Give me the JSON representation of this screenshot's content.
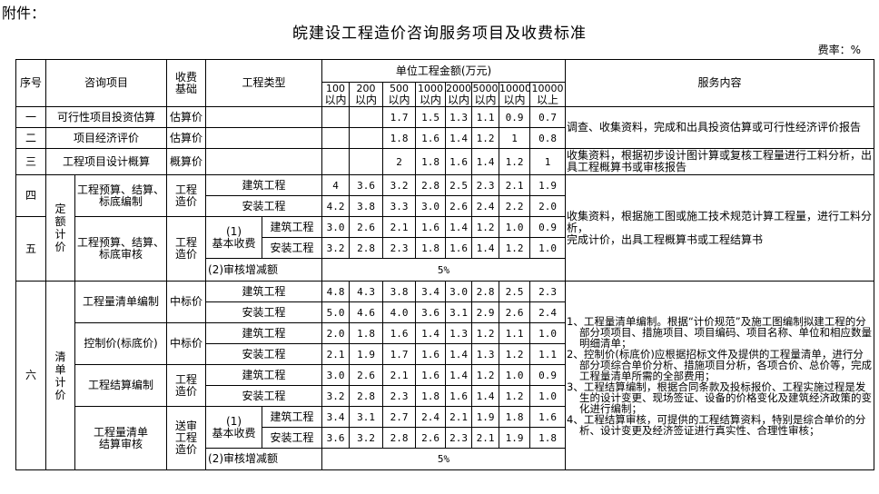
{
  "attachment_label": "附件：",
  "title": "皖建设工程造价咨询服务项目及收费标准",
  "rate_unit": "费率：%",
  "header": {
    "seq": "序号",
    "item": "咨询项目",
    "basis": "收费基础",
    "type": "工程类型",
    "amount": "单位工程金额(万元)",
    "ranges": [
      {
        "top": "100",
        "bottom": "以内"
      },
      {
        "top": "200",
        "bottom": "以内"
      },
      {
        "top": "500",
        "bottom": "以内"
      },
      {
        "top": "1000",
        "bottom": "以内"
      },
      {
        "top": "2000",
        "bottom": "以内"
      },
      {
        "top": "5000",
        "bottom": "以内"
      },
      {
        "top": "10000",
        "bottom": "以内"
      },
      {
        "top": "10000",
        "bottom": "以上"
      }
    ],
    "service": "服务内容"
  },
  "labels": {
    "building": "建筑工程",
    "install": "安装工程",
    "basic_fee_1": "(1)",
    "basic_fee_2": "基本收费",
    "review_adjust": "(2)审核增减额",
    "review_adjust_rate": "5%",
    "quota_pricing": "定额计价",
    "list_pricing": "清单计价"
  },
  "rows": {
    "r1": {
      "seq": "一",
      "item": "可行性项目投资估算",
      "basis": "估算价"
    },
    "r2": {
      "seq": "二",
      "item": "项目经济评价",
      "basis": "估算价"
    },
    "r3": {
      "seq": "三",
      "item": "工程项目设计概算",
      "basis": "概算价"
    },
    "r4": {
      "seq": "四",
      "item": "工程预算、结算、标底编制",
      "basis": "工程造价"
    },
    "r5": {
      "seq": "五",
      "item": "工程预算、结算、标底审核",
      "basis": "工程造价"
    },
    "r6": {
      "seq": "六"
    },
    "r6a": {
      "item": "工程量清单编制",
      "basis": "中标价"
    },
    "r6b": {
      "item": "控制价(标底价)",
      "basis": "中标价"
    },
    "r6c": {
      "item": "工程结算编制",
      "basis": "工程造价"
    },
    "r6d": {
      "item": "工程量清单结算审核",
      "basis": "送审工程造价"
    }
  },
  "rates": {
    "r1": [
      "",
      "",
      "1.7",
      "1.5",
      "1.3",
      "1.1",
      "0.9",
      "0.7"
    ],
    "r2": [
      "",
      "",
      "1.8",
      "1.6",
      "1.4",
      "1.2",
      "1",
      "0.8"
    ],
    "r3": [
      "",
      "",
      "2",
      "1.8",
      "1.6",
      "1.4",
      "1.2",
      "1"
    ],
    "r4_building": [
      "4",
      "3.6",
      "3.2",
      "2.8",
      "2.5",
      "2.3",
      "2.1",
      "1.9"
    ],
    "r4_install": [
      "4.2",
      "3.8",
      "3.3",
      "3.0",
      "2.6",
      "2.4",
      "2.2",
      "2.0"
    ],
    "r5_building": [
      "3.0",
      "2.6",
      "2.1",
      "1.6",
      "1.4",
      "1.2",
      "1.0",
      "0.9"
    ],
    "r5_install": [
      "3.2",
      "2.8",
      "2.3",
      "1.8",
      "1.6",
      "1.4",
      "1.2",
      "1.0"
    ],
    "r6a_building": [
      "4.8",
      "4.3",
      "3.8",
      "3.4",
      "3.0",
      "2.8",
      "2.5",
      "2.3"
    ],
    "r6a_install": [
      "5.0",
      "4.6",
      "4.0",
      "3.6",
      "3.1",
      "2.9",
      "2.6",
      "2.4"
    ],
    "r6b_building": [
      "2.0",
      "1.8",
      "1.6",
      "1.4",
      "1.3",
      "1.2",
      "1.1",
      "1.0"
    ],
    "r6b_install": [
      "2.1",
      "1.9",
      "1.7",
      "1.6",
      "1.4",
      "1.3",
      "1.2",
      "1.1"
    ],
    "r6c_building": [
      "3.0",
      "2.6",
      "2.1",
      "1.6",
      "1.4",
      "1.2",
      "1.0",
      "0.9"
    ],
    "r6c_install": [
      "3.2",
      "2.8",
      "2.3",
      "1.8",
      "1.6",
      "1.4",
      "1.2",
      "1.0"
    ],
    "r6d_building": [
      "3.4",
      "3.1",
      "2.7",
      "2.4",
      "2.1",
      "1.9",
      "1.8",
      "1.6"
    ],
    "r6d_install": [
      "3.6",
      "3.2",
      "2.8",
      "2.6",
      "2.3",
      "2.1",
      "1.9",
      "1.8"
    ]
  },
  "services": {
    "s12": "调查、收集资料，完成和出具投资估算或可行性经济评价报告",
    "s3": "收集资料，根据初步设计图计算或复核工程量进行工料分析，出具工程概算书或审核报告",
    "s45_line1": "收集资料，根据施工图或施工技术规范计算工程量，进行工料分析，",
    "s45_line2": "完成计价，出具工程概算书或工程结算书",
    "s6": [
      "1、工程量清单编制。根据“计价规范”及施工图编制拟建工程的分部分项项目、措施项目、项目编码、项目名称、单位和相应数量明细清单；",
      "2、控制价(标底价)应根据招标文件及提供的工程量清单，进行分部分项综合单价分析、措施项目分析，各项合价、总价等，完成工程量清单所需的全部费用；",
      "3、工程结算编制，根据合同条款及投标报价、工程实施过程是发生的设计变更、现场签证、设备的价格变化及建筑经济政策的变化进行编制；",
      "4、工程结算审核，可提供的工程结算资料，特别是综合单价的分析、设计变更及经济签证进行真实性、合理性审核；"
    ]
  }
}
